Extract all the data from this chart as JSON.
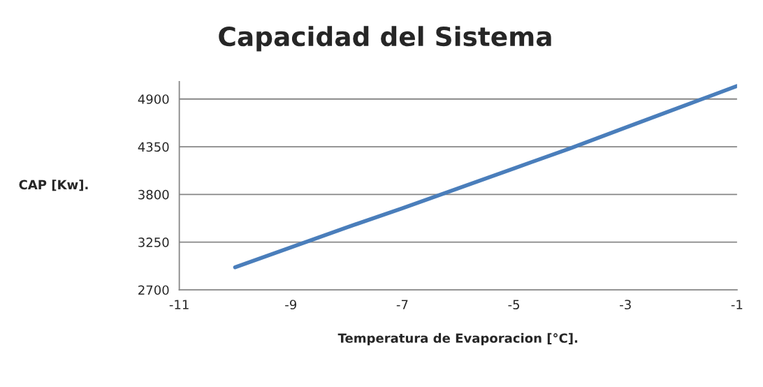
{
  "chart_data": {
    "type": "line",
    "title": "Capacidad del Sistema",
    "xlabel": "Temperatura de Evaporacion [°C].",
    "ylabel": "CAP [Kw].",
    "series": [
      {
        "color": "#4a7ebb",
        "x": [
          -10,
          -9,
          -8,
          -7,
          -6,
          -5,
          -4,
          -3,
          -2,
          -1
        ],
        "values": [
          2960,
          3190,
          3420,
          3640,
          3870,
          4100,
          4330,
          4570,
          4810,
          5050
        ]
      }
    ],
    "xlim": [
      -11,
      -1
    ],
    "xticks": [
      -11,
      -9,
      -7,
      -5,
      -3,
      -1
    ],
    "ylim": [
      2700,
      5100
    ],
    "yticks": [
      2700,
      3250,
      3800,
      4350,
      4900
    ],
    "grid": "y",
    "marker": "none",
    "line_style": "solid"
  }
}
